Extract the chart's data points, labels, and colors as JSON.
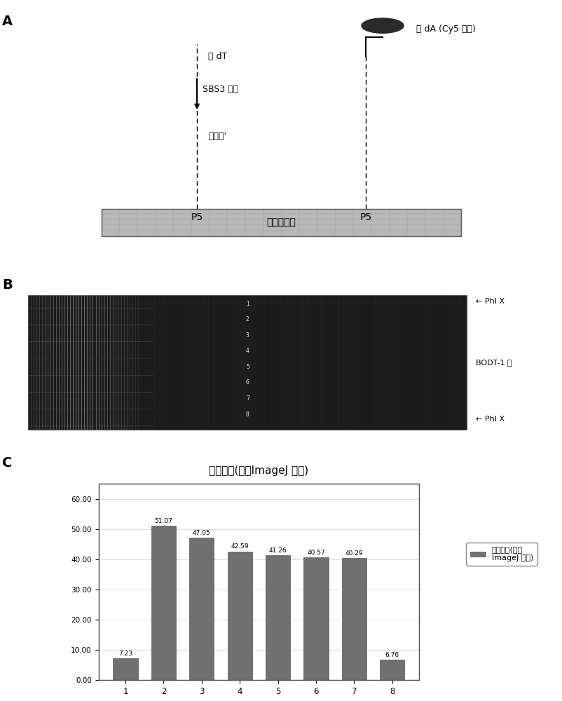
{
  "panel_labels": [
    "A",
    "B",
    "C"
  ],
  "chart_title": "信号强度(通过ImageJ 测量)",
  "bar_values": [
    7.23,
    51.07,
    47.05,
    42.59,
    41.26,
    40.57,
    40.29,
    6.76
  ],
  "bar_labels": [
    1,
    2,
    3,
    4,
    5,
    6,
    7,
    8
  ],
  "bar_color": "#707070",
  "ylim": [
    0,
    60
  ],
  "yticks": [
    0.0,
    10.0,
    20.0,
    30.0,
    40.0,
    50.0,
    60.0
  ],
  "legend_label": "信号强度(通过\nImageJ 测量)",
  "panel_a_texts": {
    "poly_dT_label": "寡 dT",
    "sbs3_label": "SBS3 引物",
    "barcode_label": "条形码'",
    "p5_left": "P5",
    "p5_right": "P5",
    "flow_cell": "流动槽表面",
    "poly_dA_label": "寡 dA (Cy5 探针)"
  },
  "panel_b_texts": {
    "phi_x_top": "← PhI X",
    "bodt_library": "BODT-1 库",
    "phi_x_bottom": "← PhI X",
    "lane_numbers": [
      "1",
      "2",
      "3",
      "4",
      "5",
      "6",
      "7",
      "8"
    ]
  },
  "bg_color": "#ffffff",
  "grid_color": "#cccccc"
}
